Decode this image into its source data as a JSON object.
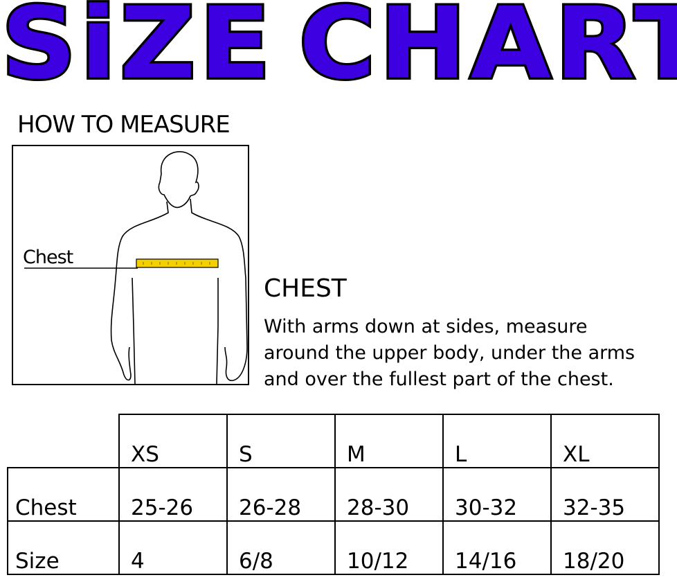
{
  "title": {
    "word1": "SiZE",
    "word2": "CHART",
    "color": "#3d00e0"
  },
  "how_to_measure": "HOW TO MEASURE",
  "figure": {
    "label": "Chest",
    "tape_color": "#f5d000"
  },
  "chest": {
    "heading": "CHEST",
    "lines": [
      "With arms down at sides, measure",
      "around the upper body, under the arms",
      "and over the fullest part of the chest."
    ]
  },
  "table": {
    "sizes": [
      "XS",
      "S",
      "M",
      "L",
      "XL"
    ],
    "rows": [
      {
        "label": "Chest",
        "values": [
          "25-26",
          "26-28",
          "28-30",
          "30-32",
          "32-35"
        ]
      },
      {
        "label": "Size",
        "values": [
          "4",
          "6/8",
          "10/12",
          "14/16",
          "18/20"
        ]
      }
    ]
  }
}
